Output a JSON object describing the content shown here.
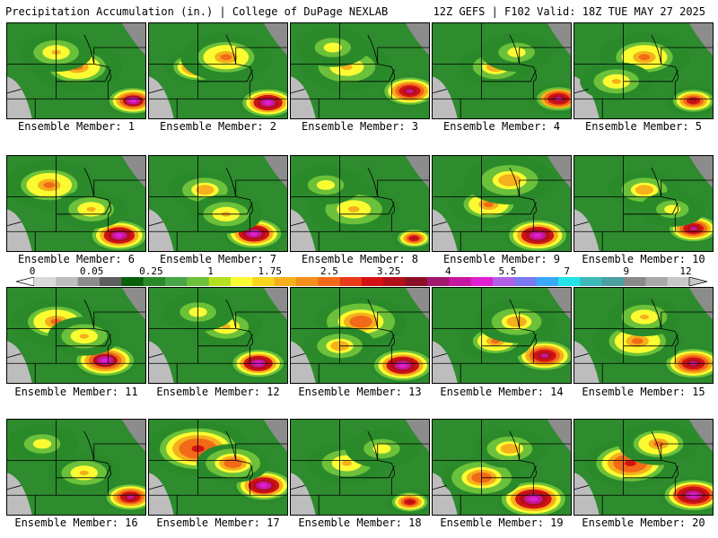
{
  "header": {
    "title": "Precipitation Accumulation (in.) | College of DuPage NEXLAB",
    "run_info": "12Z GEFS | F102 Valid: 18Z TUE MAY 27 2025"
  },
  "colorbar": {
    "labels": [
      "0",
      "0.05",
      "0.25",
      "1",
      "1.75",
      "2.5",
      "3.25",
      "4",
      "5.5",
      "7",
      "9",
      "12"
    ],
    "colors": [
      "#d9d9d9",
      "#bdbdbd",
      "#8c8c8c",
      "#5e5e5e",
      "#0a5f0a",
      "#2a8a2a",
      "#47a647",
      "#6cc13a",
      "#b4e020",
      "#fbfb32",
      "#f7d51c",
      "#f5b01c",
      "#f58f1b",
      "#f26a18",
      "#e83a17",
      "#d41216",
      "#b30f1b",
      "#8c0f26",
      "#a0176c",
      "#c6189e",
      "#e01fd0",
      "#b060e6",
      "#7a78f0",
      "#3aa8f6",
      "#25e3e6",
      "#3cb8b8",
      "#4aa0a0",
      "#8a8a8a",
      "#a8a8a8",
      "#c8c8c8"
    ]
  },
  "panels": [
    {
      "caption": "Ensemble Member: 1",
      "blobs": [
        [
          0.9,
          0.8,
          0.15,
          1.3
        ],
        [
          0.5,
          0.45,
          0.25,
          0.7
        ],
        [
          0.35,
          0.3,
          0.2,
          0.6
        ]
      ]
    },
    {
      "caption": "Ensemble Member: 2",
      "blobs": [
        [
          0.85,
          0.82,
          0.16,
          1.4
        ],
        [
          0.35,
          0.45,
          0.18,
          1.0
        ],
        [
          0.55,
          0.35,
          0.25,
          0.7
        ]
      ]
    },
    {
      "caption": "Ensemble Member: 3",
      "blobs": [
        [
          0.85,
          0.7,
          0.16,
          1.2
        ],
        [
          0.4,
          0.45,
          0.25,
          0.6
        ],
        [
          0.3,
          0.25,
          0.2,
          0.55
        ]
      ]
    },
    {
      "caption": "Ensemble Member: 4",
      "blobs": [
        [
          0.9,
          0.78,
          0.16,
          1.15
        ],
        [
          0.45,
          0.45,
          0.2,
          0.65
        ],
        [
          0.6,
          0.3,
          0.2,
          0.55
        ]
      ]
    },
    {
      "caption": "Ensemble Member: 5",
      "blobs": [
        [
          0.85,
          0.8,
          0.15,
          1.1
        ],
        [
          0.5,
          0.35,
          0.25,
          0.75
        ],
        [
          0.3,
          0.6,
          0.2,
          0.6
        ]
      ]
    },
    {
      "caption": "Ensemble Member: 6",
      "blobs": [
        [
          0.8,
          0.82,
          0.17,
          1.35
        ],
        [
          0.3,
          0.3,
          0.25,
          0.75
        ],
        [
          0.6,
          0.55,
          0.2,
          0.6
        ]
      ]
    },
    {
      "caption": "Ensemble Member: 7",
      "blobs": [
        [
          0.75,
          0.8,
          0.17,
          1.35
        ],
        [
          0.4,
          0.35,
          0.2,
          0.65
        ],
        [
          0.55,
          0.6,
          0.2,
          0.6
        ]
      ]
    },
    {
      "caption": "Ensemble Member: 8",
      "blobs": [
        [
          0.88,
          0.85,
          0.12,
          1.0
        ],
        [
          0.45,
          0.55,
          0.25,
          0.6
        ],
        [
          0.25,
          0.3,
          0.2,
          0.5
        ]
      ]
    },
    {
      "caption": "Ensemble Member: 9",
      "blobs": [
        [
          0.75,
          0.82,
          0.18,
          1.4
        ],
        [
          0.4,
          0.5,
          0.22,
          0.75
        ],
        [
          0.55,
          0.25,
          0.25,
          0.65
        ]
      ]
    },
    {
      "caption": "Ensemble Member: 10",
      "blobs": [
        [
          0.85,
          0.75,
          0.15,
          1.2
        ],
        [
          0.5,
          0.35,
          0.2,
          0.65
        ],
        [
          0.7,
          0.55,
          0.18,
          0.55
        ]
      ]
    },
    {
      "caption": "Ensemble Member: 11",
      "blobs": [
        [
          0.7,
          0.75,
          0.18,
          1.3
        ],
        [
          0.35,
          0.35,
          0.25,
          0.75
        ],
        [
          0.55,
          0.5,
          0.2,
          0.6
        ]
      ]
    },
    {
      "caption": "Ensemble Member: 12",
      "blobs": [
        [
          0.78,
          0.78,
          0.16,
          1.4
        ],
        [
          0.55,
          0.4,
          0.2,
          0.6
        ],
        [
          0.35,
          0.25,
          0.2,
          0.55
        ]
      ]
    },
    {
      "caption": "Ensemble Member: 13",
      "blobs": [
        [
          0.8,
          0.8,
          0.18,
          1.35
        ],
        [
          0.5,
          0.35,
          0.25,
          0.8
        ],
        [
          0.35,
          0.6,
          0.2,
          0.65
        ]
      ]
    },
    {
      "caption": "Ensemble Member: 14",
      "blobs": [
        [
          0.8,
          0.7,
          0.17,
          1.2
        ],
        [
          0.45,
          0.55,
          0.2,
          0.7
        ],
        [
          0.6,
          0.35,
          0.22,
          0.65
        ]
      ]
    },
    {
      "caption": "Ensemble Member: 15",
      "blobs": [
        [
          0.85,
          0.78,
          0.17,
          1.25
        ],
        [
          0.45,
          0.55,
          0.25,
          0.75
        ],
        [
          0.5,
          0.3,
          0.2,
          0.6
        ]
      ]
    },
    {
      "caption": "Ensemble Member: 16",
      "blobs": [
        [
          0.88,
          0.8,
          0.15,
          1.2
        ],
        [
          0.55,
          0.55,
          0.2,
          0.6
        ],
        [
          0.25,
          0.25,
          0.2,
          0.5
        ]
      ]
    },
    {
      "caption": "Ensemble Member: 17",
      "blobs": [
        [
          0.82,
          0.68,
          0.17,
          1.4
        ],
        [
          0.35,
          0.3,
          0.28,
          0.95
        ],
        [
          0.6,
          0.45,
          0.2,
          0.8
        ]
      ]
    },
    {
      "caption": "Ensemble Member: 18",
      "blobs": [
        [
          0.85,
          0.85,
          0.13,
          1.1
        ],
        [
          0.4,
          0.45,
          0.22,
          0.6
        ],
        [
          0.65,
          0.3,
          0.2,
          0.55
        ]
      ]
    },
    {
      "caption": "Ensemble Member: 19",
      "blobs": [
        [
          0.72,
          0.82,
          0.2,
          1.35
        ],
        [
          0.35,
          0.6,
          0.22,
          0.8
        ],
        [
          0.55,
          0.3,
          0.2,
          0.65
        ]
      ]
    },
    {
      "caption": "Ensemble Member: 20",
      "blobs": [
        [
          0.85,
          0.78,
          0.18,
          1.45
        ],
        [
          0.4,
          0.45,
          0.25,
          0.95
        ],
        [
          0.6,
          0.25,
          0.22,
          0.75
        ]
      ]
    }
  ]
}
